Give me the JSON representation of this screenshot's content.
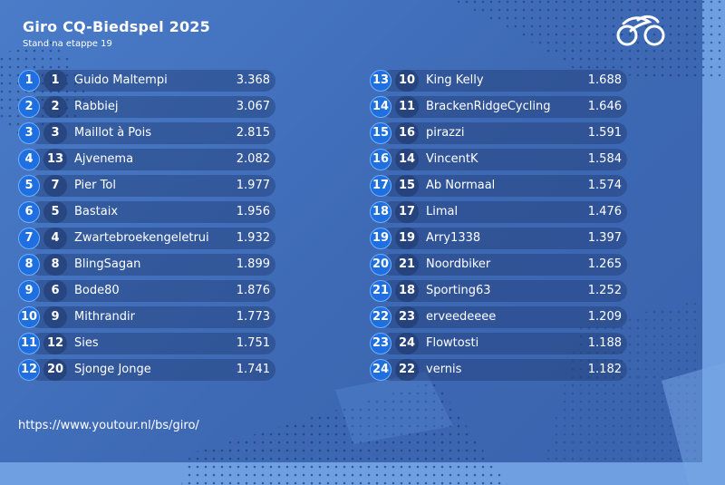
{
  "header": {
    "title": "Giro CQ-Biedspel 2025",
    "subtitle": "Stand na etappe 19",
    "logo_icon": "cycling-logo-icon"
  },
  "standings_left": [
    {
      "rank": "1",
      "prev": "1",
      "name": "Guido Maltempi",
      "score": "3.368"
    },
    {
      "rank": "2",
      "prev": "2",
      "name": "Rabbiej",
      "score": "3.067"
    },
    {
      "rank": "3",
      "prev": "3",
      "name": "Maillot à Pois",
      "score": "2.815"
    },
    {
      "rank": "4",
      "prev": "13",
      "name": "Ajvenema",
      "score": "2.082"
    },
    {
      "rank": "5",
      "prev": "7",
      "name": "Pier Tol",
      "score": "1.977"
    },
    {
      "rank": "6",
      "prev": "5",
      "name": "Bastaix",
      "score": "1.956"
    },
    {
      "rank": "7",
      "prev": "4",
      "name": "Zwartebroekengeletrui",
      "score": "1.932"
    },
    {
      "rank": "8",
      "prev": "8",
      "name": "BlingSagan",
      "score": "1.899"
    },
    {
      "rank": "9",
      "prev": "6",
      "name": "Bode80",
      "score": "1.876"
    },
    {
      "rank": "10",
      "prev": "9",
      "name": "Mithrandir",
      "score": "1.773"
    },
    {
      "rank": "11",
      "prev": "12",
      "name": "Sies",
      "score": "1.751"
    },
    {
      "rank": "12",
      "prev": "20",
      "name": "Sjonge Jonge",
      "score": "1.741"
    }
  ],
  "standings_right": [
    {
      "rank": "13",
      "prev": "10",
      "name": "King Kelly",
      "score": "1.688"
    },
    {
      "rank": "14",
      "prev": "11",
      "name": "BrackenRidgeCycling",
      "score": "1.646"
    },
    {
      "rank": "15",
      "prev": "16",
      "name": "pirazzi",
      "score": "1.591"
    },
    {
      "rank": "16",
      "prev": "14",
      "name": "VincentK",
      "score": "1.584"
    },
    {
      "rank": "17",
      "prev": "15",
      "name": "Ab Normaal",
      "score": "1.574"
    },
    {
      "rank": "18",
      "prev": "17",
      "name": "Limal",
      "score": "1.476"
    },
    {
      "rank": "19",
      "prev": "19",
      "name": "Arry1338",
      "score": "1.397"
    },
    {
      "rank": "20",
      "prev": "21",
      "name": "Noordbiker",
      "score": "1.265"
    },
    {
      "rank": "21",
      "prev": "18",
      "name": "Sporting63",
      "score": "1.252"
    },
    {
      "rank": "22",
      "prev": "23",
      "name": "erveedeeee",
      "score": "1.209"
    },
    {
      "rank": "23",
      "prev": "24",
      "name": "Flowtosti",
      "score": "1.188"
    },
    {
      "rank": "24",
      "prev": "22",
      "name": "vernis",
      "score": "1.182"
    }
  ],
  "footer": {
    "url": "https://www.youtour.nl/bs/giro/"
  },
  "colors": {
    "background": "#3f6bb6",
    "rank_badge": "#1f6fe0",
    "row_pill": "#203a70",
    "accent_light": "#6f9fe0"
  }
}
